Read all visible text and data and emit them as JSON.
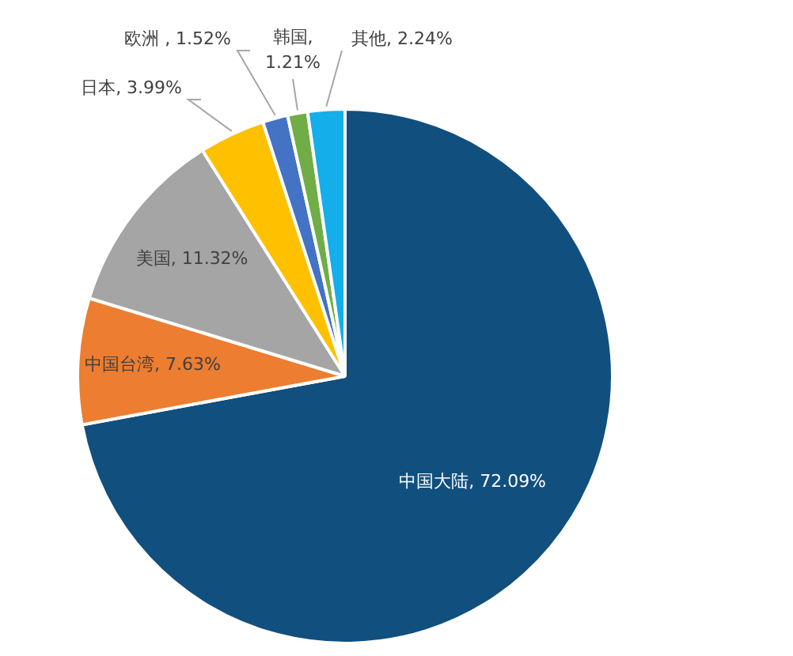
{
  "chart_data": {
    "type": "pie",
    "categories": [
      "中国大陆",
      "中国台湾",
      "美国",
      "日本",
      "欧洲",
      "韩国",
      "其他"
    ],
    "values": [
      72.09,
      7.63,
      11.32,
      3.99,
      1.52,
      1.21,
      2.24
    ],
    "colors": [
      "#114f7e",
      "#ed7d31",
      "#a5a5a5",
      "#ffc000",
      "#4472c4",
      "#70ad47",
      "#14aeea"
    ],
    "value_labels": [
      ", 72.09%",
      ", 7.63%",
      ", 11.32%",
      ", 3.99%",
      " , 1.52%",
      ", 1.21%",
      ", 2.24%"
    ],
    "legend": false
  }
}
